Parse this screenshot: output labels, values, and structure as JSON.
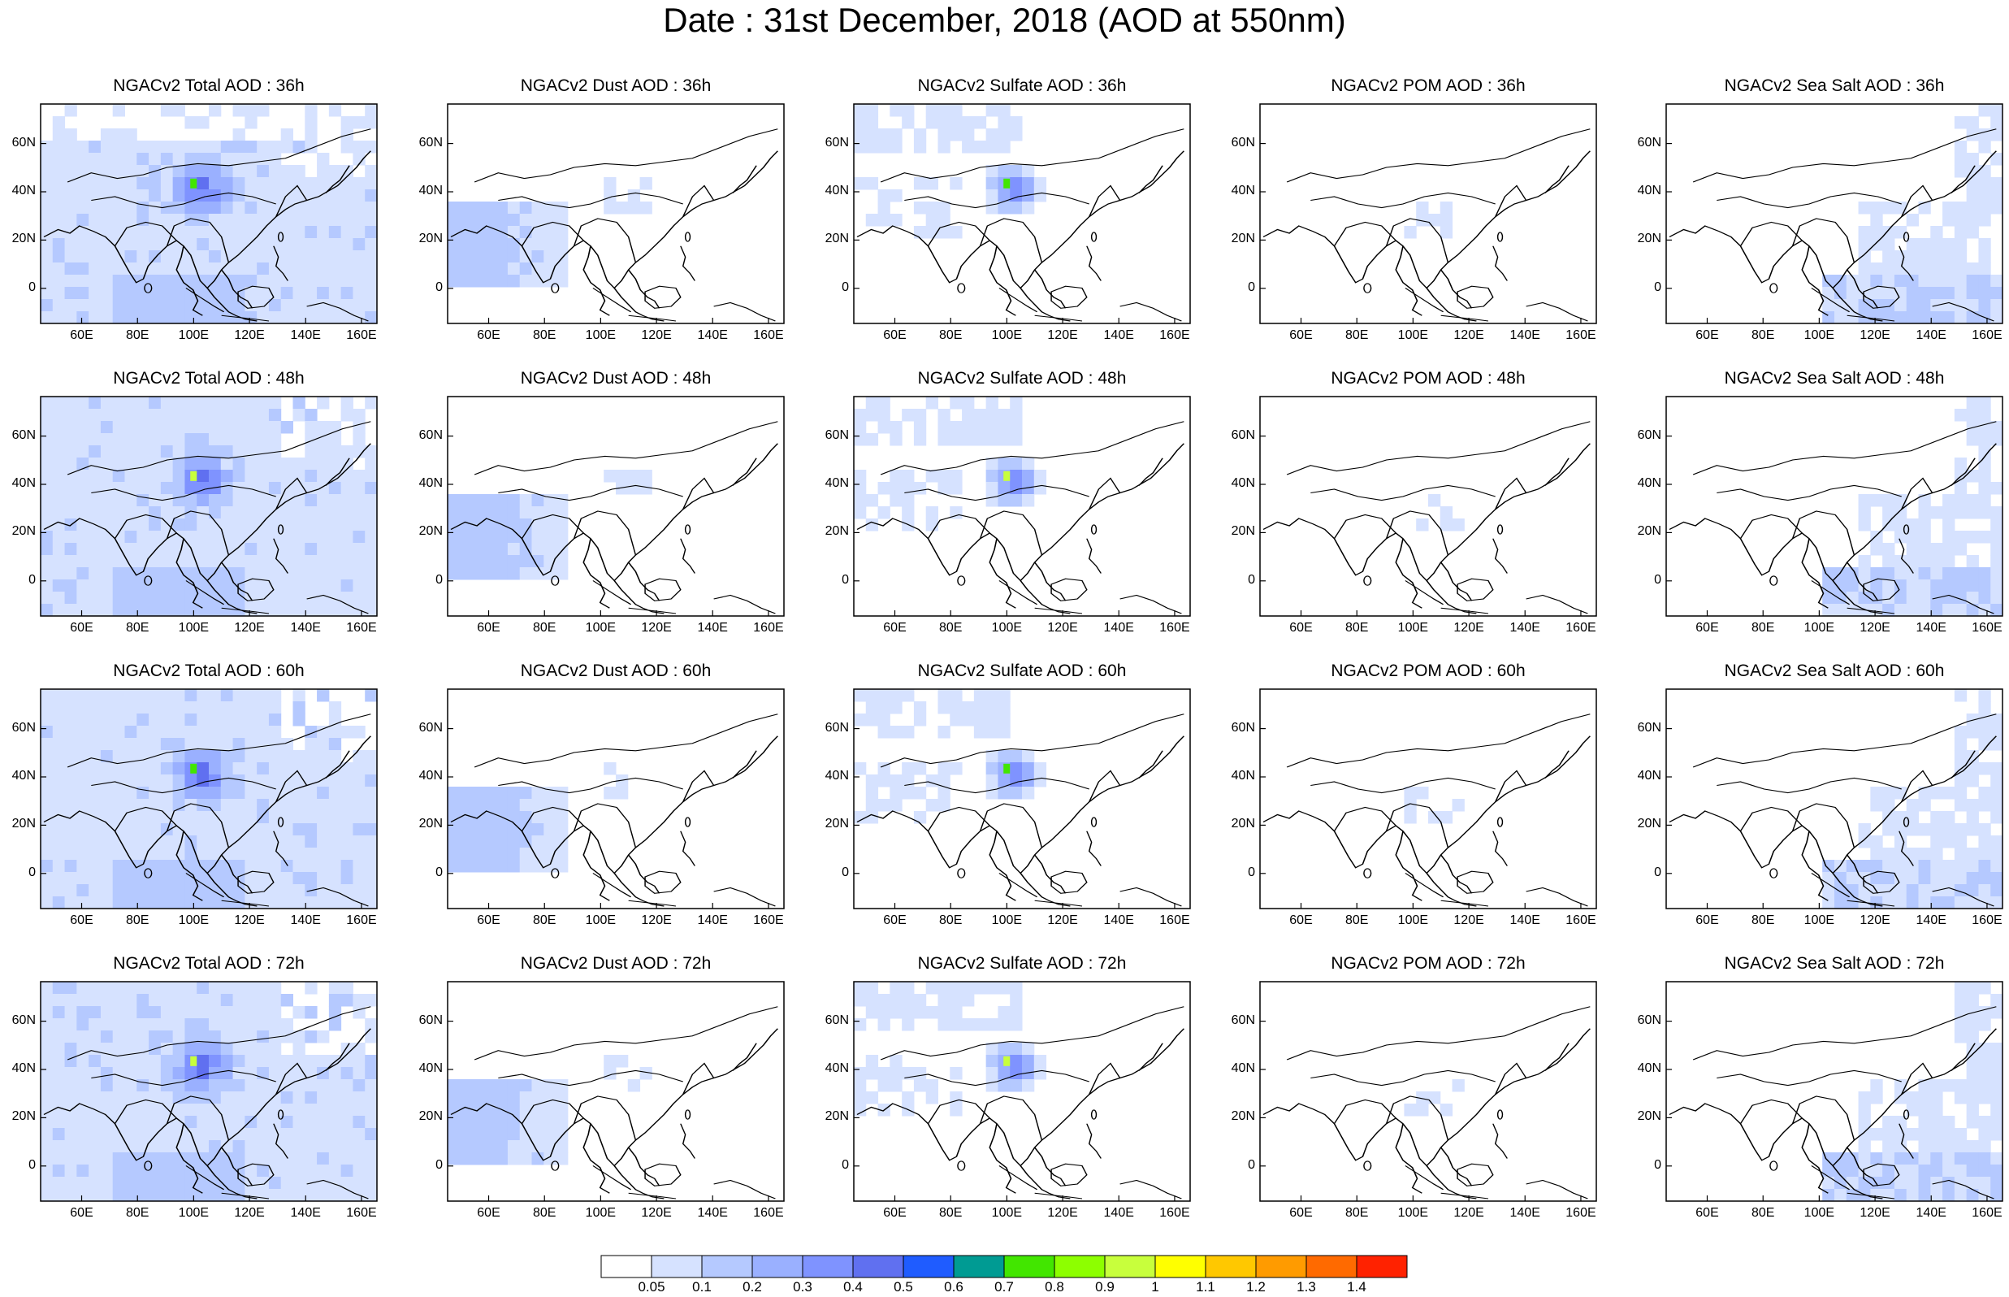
{
  "title": "Date : 31st December, 2018 (AOD at 550nm)",
  "longitude_ticks": [
    "60E",
    "80E",
    "100E",
    "120E",
    "140E",
    "160E"
  ],
  "latitude_ticks": [
    "60N",
    "40N",
    "20N",
    "0"
  ],
  "panels": [
    [
      {
        "title": "NGACv2 Total AOD : 36h",
        "species": "total"
      },
      {
        "title": "NGACv2 Dust AOD : 36h",
        "species": "dust"
      },
      {
        "title": "NGACv2 Sulfate AOD : 36h",
        "species": "sulfate"
      },
      {
        "title": "NGACv2 POM AOD : 36h",
        "species": "pom"
      },
      {
        "title": "NGACv2 Sea Salt AOD : 36h",
        "species": "seasalt"
      }
    ],
    [
      {
        "title": "NGACv2 Total AOD : 48h",
        "species": "total"
      },
      {
        "title": "NGACv2 Dust AOD : 48h",
        "species": "dust"
      },
      {
        "title": "NGACv2 Sulfate AOD : 48h",
        "species": "sulfate"
      },
      {
        "title": "NGACv2 POM AOD : 48h",
        "species": "pom"
      },
      {
        "title": "NGACv2 Sea Salt AOD : 48h",
        "species": "seasalt"
      }
    ],
    [
      {
        "title": "NGACv2 Total AOD : 60h",
        "species": "total"
      },
      {
        "title": "NGACv2 Dust AOD : 60h",
        "species": "dust"
      },
      {
        "title": "NGACv2 Sulfate AOD : 60h",
        "species": "sulfate"
      },
      {
        "title": "NGACv2 POM AOD : 60h",
        "species": "pom"
      },
      {
        "title": "NGACv2 Sea Salt AOD : 60h",
        "species": "seasalt"
      }
    ],
    [
      {
        "title": "NGACv2 Total AOD : 72h",
        "species": "total"
      },
      {
        "title": "NGACv2 Dust AOD : 72h",
        "species": "dust"
      },
      {
        "title": "NGACv2 Sulfate AOD : 72h",
        "species": "sulfate"
      },
      {
        "title": "NGACv2 POM AOD : 72h",
        "species": "pom"
      },
      {
        "title": "NGACv2 Sea Salt  AOD : 72h",
        "species": "seasalt"
      }
    ]
  ],
  "colorbar": {
    "labels": [
      "0.05",
      "0.1",
      "0.2",
      "0.3",
      "0.4",
      "0.5",
      "0.6",
      "0.7",
      "0.8",
      "0.9",
      "1",
      "1.1",
      "1.2",
      "1.3",
      "1.4"
    ],
    "colors": [
      "#ffffff",
      "#d6e2ff",
      "#b5c9ff",
      "#9ab0ff",
      "#7f93ff",
      "#6070f0",
      "#1f5cff",
      "#009b93",
      "#42e600",
      "#8dff00",
      "#c8ff3c",
      "#ffff00",
      "#ffc800",
      "#ff9b00",
      "#ff6a00",
      "#ff2200"
    ]
  }
}
